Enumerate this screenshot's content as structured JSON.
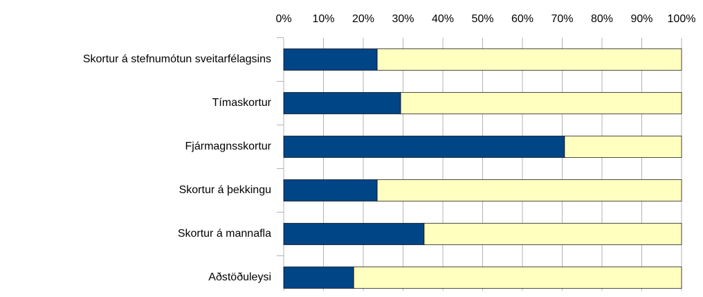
{
  "chart_data": {
    "type": "bar",
    "orientation": "horizontal",
    "stacked": true,
    "categories": [
      "Skortur á stefnumótun sveitarfélagsins",
      "Tímaskortur",
      "Fjármagnsskortur",
      "Skortur á þekkingu",
      "Skortur á mannafla",
      "Aðstöðuleysi"
    ],
    "series": [
      {
        "color": "#004586",
        "values": [
          23.5,
          29.4,
          70.6,
          23.5,
          35.3,
          17.6
        ]
      },
      {
        "color": "#ffffc0",
        "values": [
          76.5,
          70.6,
          29.4,
          76.5,
          64.7,
          82.4
        ]
      }
    ],
    "xlim": [
      0,
      100
    ],
    "xticks": [
      {
        "value": 0,
        "label": "0%"
      },
      {
        "value": 10,
        "label": "10%"
      },
      {
        "value": 20,
        "label": "20%"
      },
      {
        "value": 30,
        "label": "30%"
      },
      {
        "value": 40,
        "label": "40%"
      },
      {
        "value": 50,
        "label": "50%"
      },
      {
        "value": 60,
        "label": "60%"
      },
      {
        "value": 70,
        "label": "70%"
      },
      {
        "value": 80,
        "label": "80%"
      },
      {
        "value": 90,
        "label": "90%"
      },
      {
        "value": 100,
        "label": "100%"
      }
    ],
    "grid": true
  }
}
